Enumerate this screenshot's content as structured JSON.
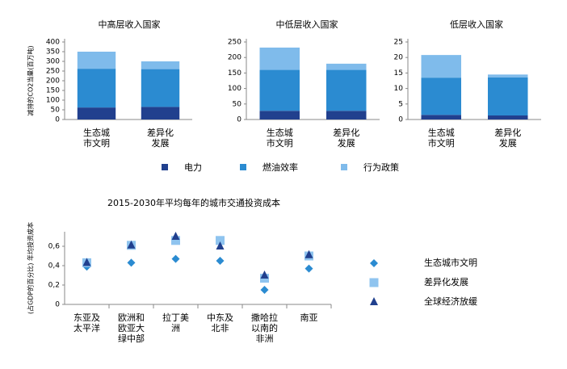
{
  "chart_data": [
    {
      "type": "bar",
      "stacked": true,
      "title": "中高层收入国家",
      "ylabel": "减排的CO2当量(百万吨)",
      "categories": [
        "生态城市文明",
        "差异化发展"
      ],
      "ylim": [
        0,
        400
      ],
      "yticks": [
        0,
        50,
        100,
        150,
        200,
        250,
        300,
        350,
        400
      ],
      "series": [
        {
          "name": "电力",
          "color": "#21408e",
          "values": [
            62,
            65
          ]
        },
        {
          "name": "燃油效率",
          "color": "#2b8bd1",
          "values": [
            200,
            195
          ]
        },
        {
          "name": "行为政策",
          "color": "#7fbbeb",
          "values": [
            88,
            40
          ]
        }
      ]
    },
    {
      "type": "bar",
      "stacked": true,
      "title": "中低层收入国家",
      "categories": [
        "生态城市文明",
        "差异化发展"
      ],
      "ylim": [
        0,
        250
      ],
      "yticks": [
        0,
        50,
        100,
        150,
        200,
        250
      ],
      "series": [
        {
          "name": "电力",
          "color": "#21408e",
          "values": [
            28,
            28
          ]
        },
        {
          "name": "燃油效率",
          "color": "#2b8bd1",
          "values": [
            132,
            132
          ]
        },
        {
          "name": "行为政策",
          "color": "#7fbbeb",
          "values": [
            72,
            20
          ]
        }
      ]
    },
    {
      "type": "bar",
      "stacked": true,
      "title": "低层收入国家",
      "categories": [
        "生态城市文明",
        "差异化发展"
      ],
      "ylim": [
        0,
        25
      ],
      "yticks": [
        0,
        5,
        10,
        15,
        20,
        25
      ],
      "series": [
        {
          "name": "电力",
          "color": "#21408e",
          "values": [
            1.5,
            1.3
          ]
        },
        {
          "name": "燃油效率",
          "color": "#2b8bd1",
          "values": [
            12,
            12.3
          ]
        },
        {
          "name": "行为政策",
          "color": "#7fbbeb",
          "values": [
            7.3,
            0.9
          ]
        }
      ]
    },
    {
      "type": "scatter",
      "title": "2015-2030年平均每年的城市交通投资成本",
      "ylabel": "(占GDP的百分比) 年均投资成本",
      "categories": [
        "东亚及太平洋",
        "欧洲和欧亚大绿中部",
        "拉丁美洲",
        "中东及北非",
        "撒哈拉以南的非洲",
        "南亚"
      ],
      "ylim": [
        0,
        0.75
      ],
      "yticks": [
        0,
        {
          "value": 0.2,
          "label": "0,2"
        },
        {
          "value": 0.4,
          "label": "0,4"
        },
        {
          "value": 0.6,
          "label": "0,6"
        }
      ],
      "series": [
        {
          "name": "生态城市文明",
          "color": "#2b8bd1",
          "marker": "diamond",
          "values": [
            0.39,
            0.43,
            0.47,
            0.45,
            0.15,
            0.37
          ]
        },
        {
          "name": "差异化发展",
          "color": "#8fc4ef",
          "marker": "square",
          "values": [
            0.43,
            0.61,
            0.66,
            0.66,
            0.27,
            0.5
          ]
        },
        {
          "name": "全球经济放缓",
          "color": "#21408e",
          "marker": "triangle",
          "values": [
            0.43,
            0.61,
            0.7,
            0.6,
            0.3,
            0.51
          ]
        }
      ]
    }
  ]
}
